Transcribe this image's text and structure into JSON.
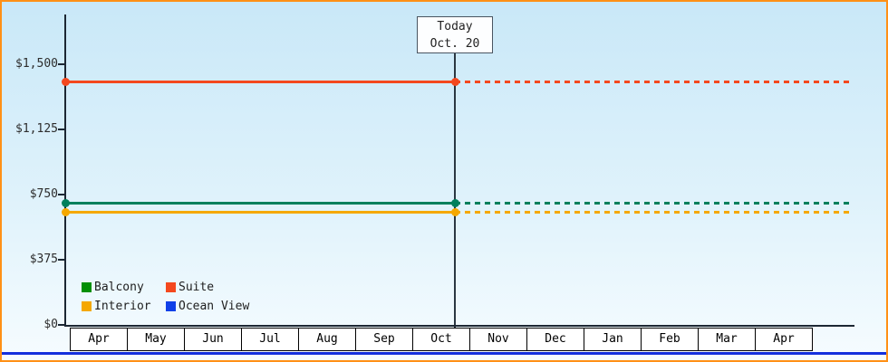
{
  "colors": {
    "frame_border": "#ff9016",
    "plot_bg_top": "#c9e8f8",
    "plot_bg_mid": "#dff2fb",
    "plot_bg_bottom": "#f6fcff",
    "axis": "#1c2733",
    "bottom_bar": "#1430dd"
  },
  "chart_data": {
    "type": "line",
    "x_categories": [
      "Apr",
      "May",
      "Jun",
      "Jul",
      "Aug",
      "Sep",
      "Oct",
      "Nov",
      "Dec",
      "Jan",
      "Feb",
      "Mar",
      "Apr"
    ],
    "ylim": [
      0,
      1500
    ],
    "y_ticks": [
      {
        "value": 1500,
        "label": "$1,500"
      },
      {
        "value": 1125,
        "label": "$1,125"
      },
      {
        "value": 750,
        "label": "$750"
      },
      {
        "value": 375,
        "label": "$375"
      },
      {
        "value": 0,
        "label": "$0"
      }
    ],
    "grid": false,
    "today": {
      "label": [
        "Today",
        "Oct. 20"
      ],
      "at_category": "Oct"
    },
    "series": [
      {
        "name": "Suite",
        "color": "#f4481e",
        "value": 1399,
        "shape": "constant",
        "style": "solid-past-dotted-future"
      },
      {
        "name": "Balcony",
        "color": "#00805c",
        "value": 699,
        "shape": "constant",
        "style": "solid-past-dotted-future"
      },
      {
        "name": "Interior",
        "color": "#f5a800",
        "value": 649,
        "shape": "constant",
        "style": "solid-past-dotted-future"
      },
      {
        "name": "Ocean View",
        "color": "#1040e8",
        "value": null,
        "style": "not-visible"
      }
    ],
    "legend": {
      "position": "bottom-left",
      "items": [
        {
          "label": "Balcony",
          "color": "#049004"
        },
        {
          "label": "Suite",
          "color": "#f4481e"
        },
        {
          "label": "Interior",
          "color": "#f5a800"
        },
        {
          "label": "Ocean View",
          "color": "#1040e8"
        }
      ]
    }
  }
}
